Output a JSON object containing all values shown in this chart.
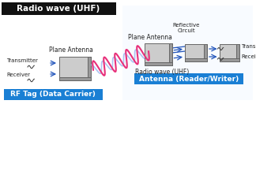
{
  "title": "Radio wave (UHF)",
  "title_bg": "#111111",
  "title_color": "#ffffff",
  "blue_label_bg": "#1a7fd4",
  "blue_label_color": "#ffffff",
  "labels": {
    "rf_tag": "RF Tag (Data Carrier)",
    "antenna_rw": "Antenna (Reader/Writer)",
    "plane_antenna_left": "Plane Antenna",
    "plane_antenna_right": "Plane Antenna",
    "transmitter_left": "Transmitter",
    "receiver_left": "Receiver",
    "transmitter_right": "Transmitter",
    "receiver_right": "Receiver",
    "reflective_circuit": "Reflective\nCircuit",
    "radio_wave": "Radio wave (UHF)"
  },
  "coil_color_pink": "#e8307a",
  "coil_color_blue": "#a0b8f0",
  "arrow_color": "#2255bb",
  "rect_fill": "#cccccc",
  "rect_edge": "#666666",
  "rect_shadow": "#999999"
}
